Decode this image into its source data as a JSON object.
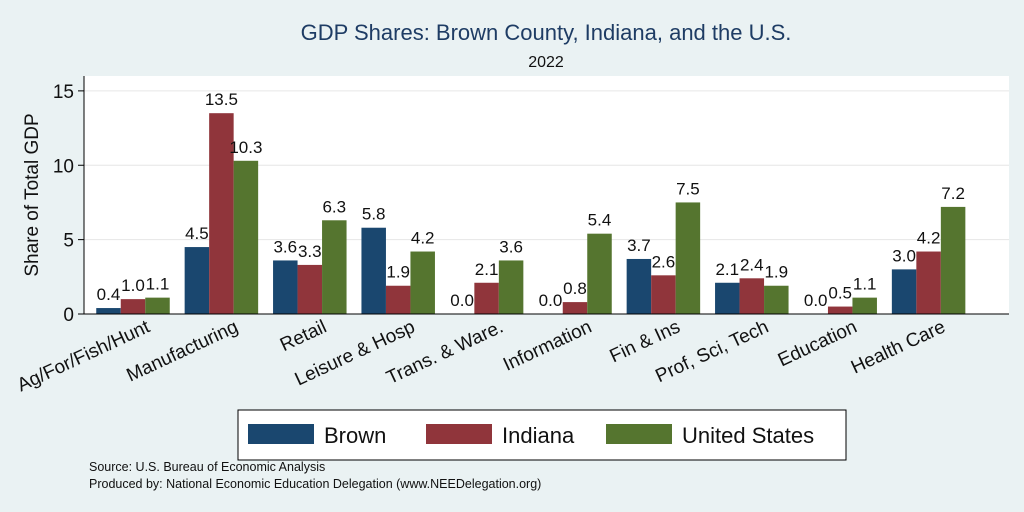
{
  "chart_data": {
    "type": "bar",
    "title": "GDP Shares: Brown County, Indiana, and the U.S.",
    "subtitle": "2022",
    "ylabel": "Share of Total GDP",
    "xlabel": "",
    "ylim": [
      0,
      16
    ],
    "yticks": [
      "0",
      "5",
      "10",
      "15"
    ],
    "grid": true,
    "legend_position": "bottom",
    "categories": [
      "Ag/For/Fish/Hunt",
      "Manufacturing",
      "Retail",
      "Leisure & Hosp",
      "Trans. & Ware.",
      "Information",
      "Fin & Ins",
      "Prof, Sci, Tech",
      "Education",
      "Health Care"
    ],
    "series": [
      {
        "name": "Brown",
        "color": "#1a476f",
        "values": [
          0.4,
          4.5,
          3.6,
          5.8,
          0.0,
          0.0,
          3.7,
          2.1,
          0.0,
          3.0
        ],
        "labels": [
          "0.4",
          "4.5",
          "3.6",
          "5.8",
          "0.0",
          "0.0",
          "3.7",
          "2.1",
          "0.0",
          "3.0"
        ]
      },
      {
        "name": "Indiana",
        "color": "#90353b",
        "values": [
          1.0,
          13.5,
          3.3,
          1.9,
          2.1,
          0.8,
          2.6,
          2.4,
          0.5,
          4.2
        ],
        "labels": [
          "1.0",
          "13.5",
          "3.3",
          "1.9",
          "2.1",
          "0.8",
          "2.6",
          "2.4",
          "0.5",
          "4.2"
        ]
      },
      {
        "name": "United States",
        "color": "#55752f",
        "values": [
          1.1,
          10.3,
          6.3,
          4.2,
          3.6,
          5.4,
          7.5,
          1.9,
          1.1,
          7.2
        ],
        "labels": [
          "1.1",
          "10.3",
          "6.3",
          "4.2",
          "3.6",
          "5.4",
          "7.5",
          "1.9",
          "1.1",
          "7.2"
        ]
      }
    ],
    "notes": [
      "Source: U.S. Bureau of Economic Analysis",
      "Produced by: National Economic Education Delegation (www.NEEDelegation.org)"
    ]
  }
}
